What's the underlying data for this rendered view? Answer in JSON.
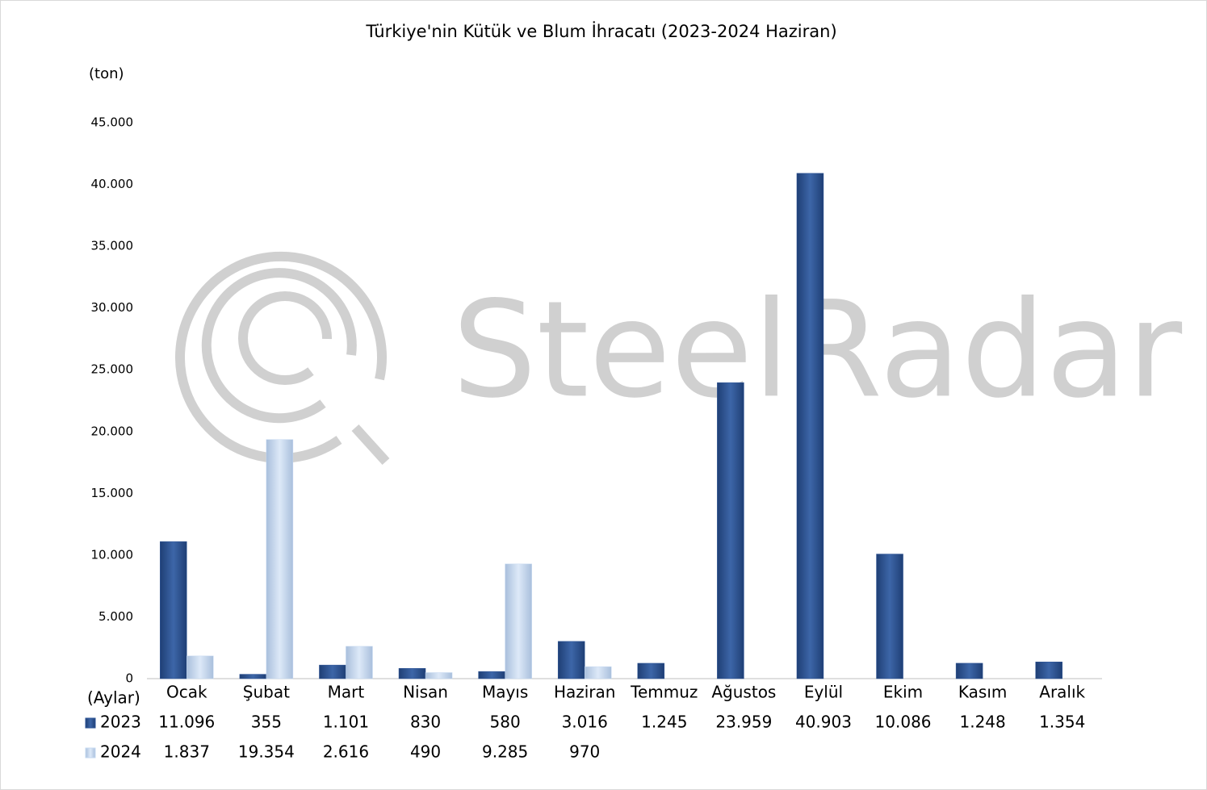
{
  "chart_data": {
    "type": "bar",
    "title": "Türkiye'nin Kütük ve Blum İhracatı (2023-2024 Haziran)",
    "y_label": "(ton)",
    "x_label": "(Aylar)",
    "watermark": "SteelRadar",
    "categories": [
      "Ocak",
      "Şubat",
      "Mart",
      "Nisan",
      "Mayıs",
      "Haziran",
      "Temmuz",
      "Ağustos",
      "Eylül",
      "Ekim",
      "Kasım",
      "Aralık"
    ],
    "series": [
      {
        "name": "2023",
        "color": "#2e5597",
        "values": [
          11096,
          355,
          1101,
          830,
          580,
          3016,
          1245,
          23959,
          40903,
          10086,
          1248,
          1354
        ],
        "value_labels": [
          "11.096",
          "355",
          "1.101",
          "830",
          "580",
          "3.016",
          "1.245",
          "23.959",
          "40.903",
          "10.086",
          "1.248",
          "1.354"
        ]
      },
      {
        "name": "2024",
        "color": "#c6d9f1",
        "values": [
          1837,
          19354,
          2616,
          490,
          9285,
          970,
          null,
          null,
          null,
          null,
          null,
          null
        ],
        "value_labels": [
          "1.837",
          "19.354",
          "2.616",
          "490",
          "9.285",
          "970",
          null,
          null,
          null,
          null,
          null,
          null
        ]
      }
    ],
    "ylim": [
      0,
      45000
    ],
    "yticks": [
      0,
      {
        "value": 5000,
        "label": "5.000"
      },
      {
        "value": 10000,
        "label": "10.000"
      },
      {
        "value": 15000,
        "label": "15.000"
      },
      {
        "value": 20000,
        "label": "20.000"
      },
      {
        "value": 25000,
        "label": "25.000"
      },
      {
        "value": 30000,
        "label": "30.000"
      },
      {
        "value": 35000,
        "label": "35.000"
      },
      {
        "value": 40000,
        "label": "40.000"
      },
      {
        "value": 45000,
        "label": "45.000"
      }
    ],
    "grid": false
  }
}
